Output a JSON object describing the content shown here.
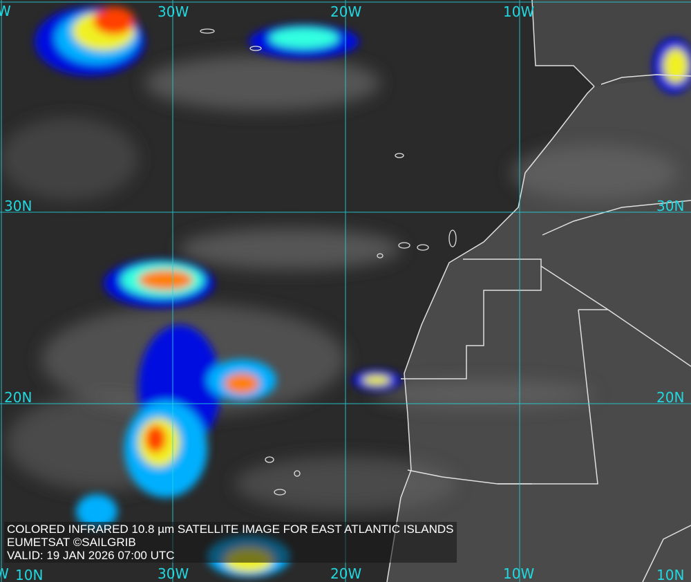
{
  "image": {
    "caption": {
      "title": "COLORED INFRARED 10.8 µm SATELLITE IMAGE FOR EAST ATLANTIC ISLANDS",
      "credit": "EUMETSAT ©SAILGRIB",
      "valid": "VALID:  19 JAN 2026 07:00 UTC"
    },
    "grid_labels": {
      "lon_top": [
        "W",
        "30W",
        "20W",
        "10W"
      ],
      "lon_bottom": [
        "W",
        "30W",
        "20W",
        "10W"
      ],
      "lat_left": [
        "30N",
        "20N",
        "10N"
      ],
      "lat_right": [
        "30N",
        "20N",
        "10N"
      ]
    },
    "colors": {
      "grid": "#22d8e0",
      "coastline": "#e0e0e0",
      "ocean": "#2a2a2a",
      "land": "#555555",
      "cloud_scale": [
        "#0010e0",
        "#00b0ff",
        "#30ffe0",
        "#f0f020",
        "#ff8000",
        "#ff1000"
      ]
    }
  }
}
